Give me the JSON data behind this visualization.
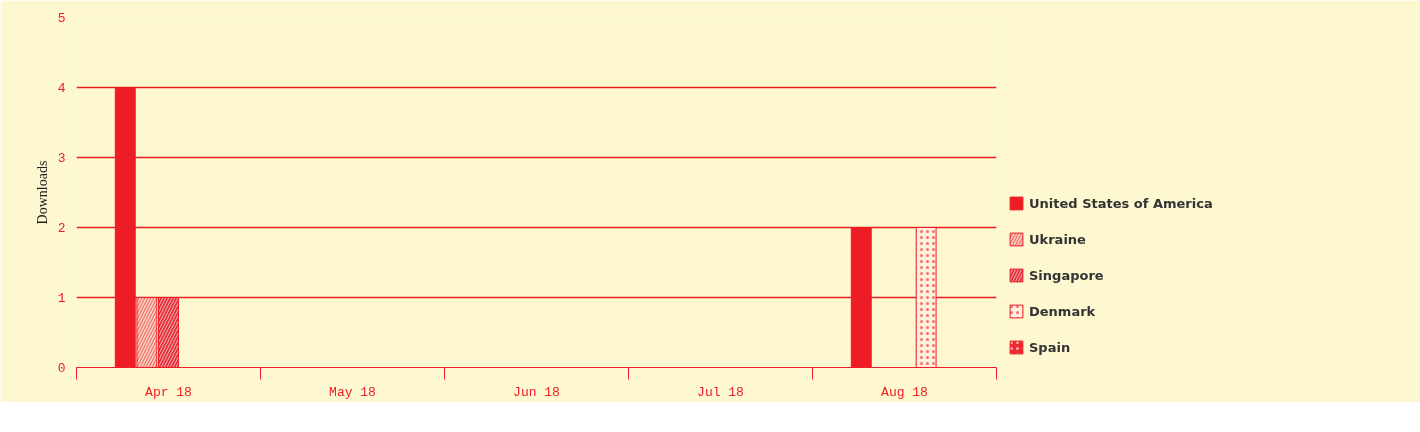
{
  "chart_data": {
    "type": "bar",
    "ylabel": "Downloads",
    "categories": [
      "Apr 18",
      "May 18",
      "Jun 18",
      "Jul 18",
      "Aug 18"
    ],
    "series": [
      {
        "name": "United States of America",
        "color": "#ee1c25",
        "values": [
          4,
          null,
          null,
          null,
          2
        ]
      },
      {
        "name": "Ukraine",
        "color": "#f6c9b8",
        "values": [
          1,
          null,
          null,
          null,
          null
        ]
      },
      {
        "name": "Singapore",
        "color": "#e4343c",
        "values": [
          1,
          null,
          null,
          null,
          null
        ]
      },
      {
        "name": "Denmark",
        "color": "#fdf0dc",
        "values": [
          null,
          null,
          null,
          null,
          2
        ]
      },
      {
        "name": "Spain",
        "color": "#ee2a30",
        "values": [
          null,
          null,
          null,
          null,
          null
        ]
      }
    ],
    "ylim": [
      0,
      5
    ],
    "yticks": [
      0,
      1,
      2,
      3,
      4,
      5
    ],
    "grid": "y",
    "legend": "right"
  }
}
